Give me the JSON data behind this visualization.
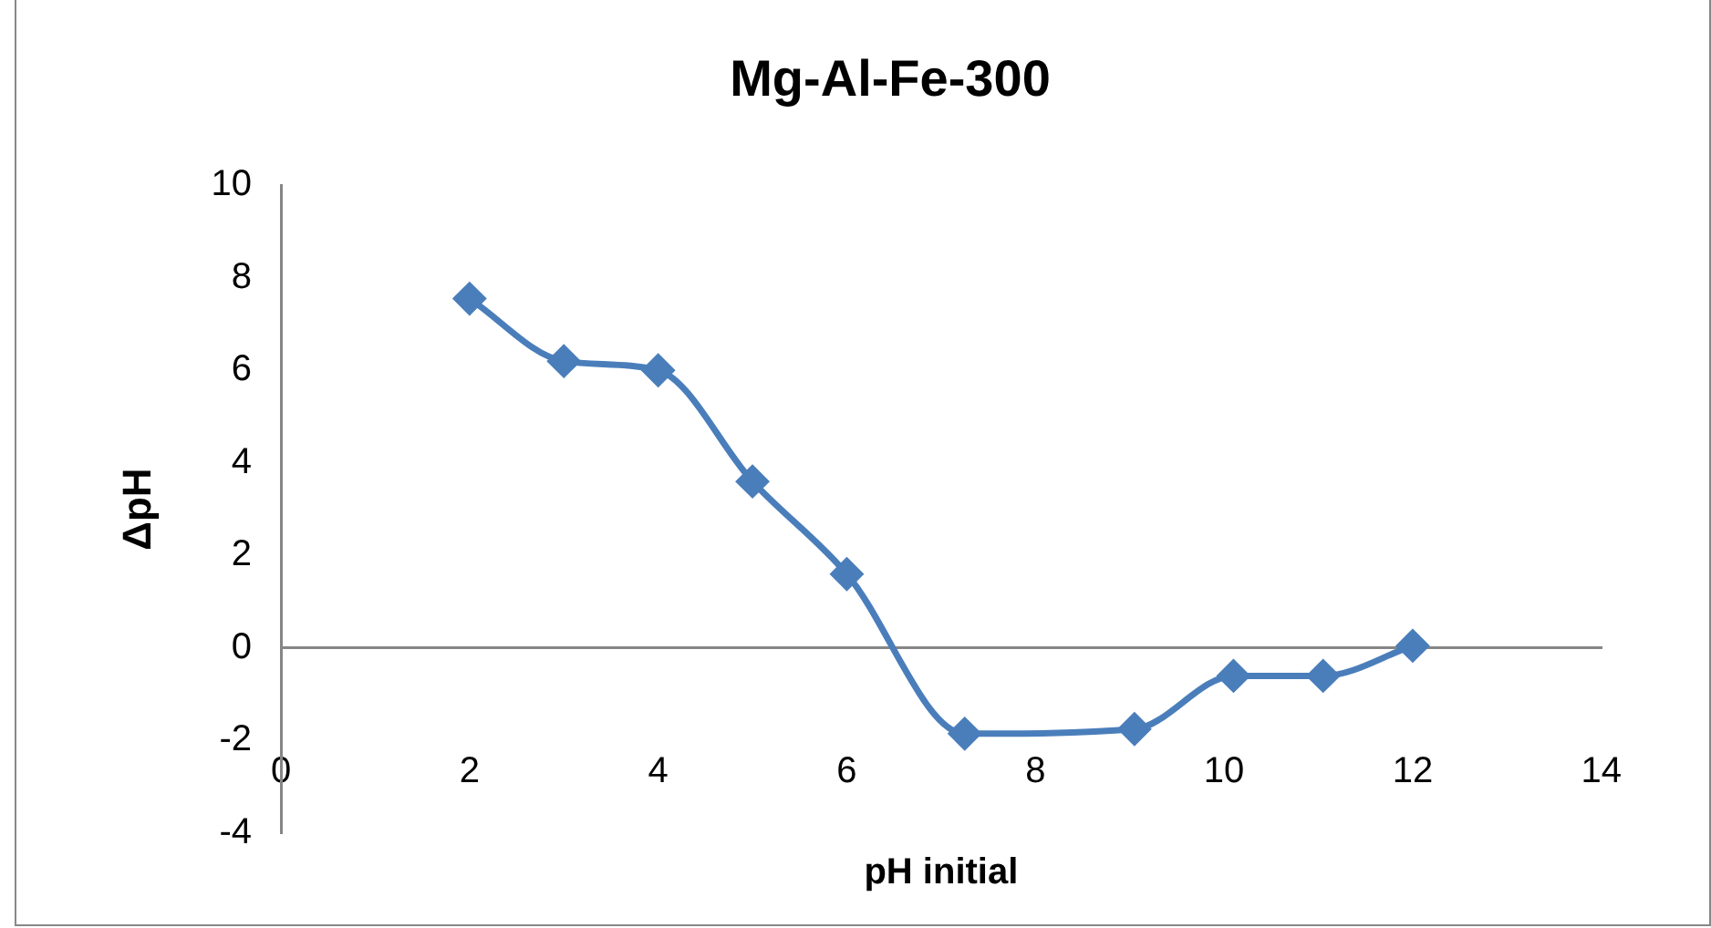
{
  "chart_data": {
    "type": "line",
    "title": "Mg-Al-Fe-300",
    "xlabel": "pH initial",
    "ylabel": "ΔpH",
    "x": [
      2,
      3,
      4,
      5,
      6,
      7.25,
      9.05,
      10.1,
      11.05,
      12
    ],
    "series": [
      {
        "color": "#4a7ebb",
        "values": [
          7.55,
          6.2,
          6.0,
          3.6,
          1.6,
          -1.85,
          -1.75,
          -0.6,
          -0.6,
          0.05
        ]
      }
    ],
    "xlim": [
      0,
      14
    ],
    "xticks": [
      0,
      2,
      4,
      6,
      8,
      10,
      12,
      14
    ],
    "ylim": [
      -4,
      10
    ],
    "yticks": [
      -4,
      -2,
      0,
      2,
      4,
      6,
      8,
      10
    ],
    "legend": false,
    "marker": "diamond",
    "line_style": "solid"
  }
}
